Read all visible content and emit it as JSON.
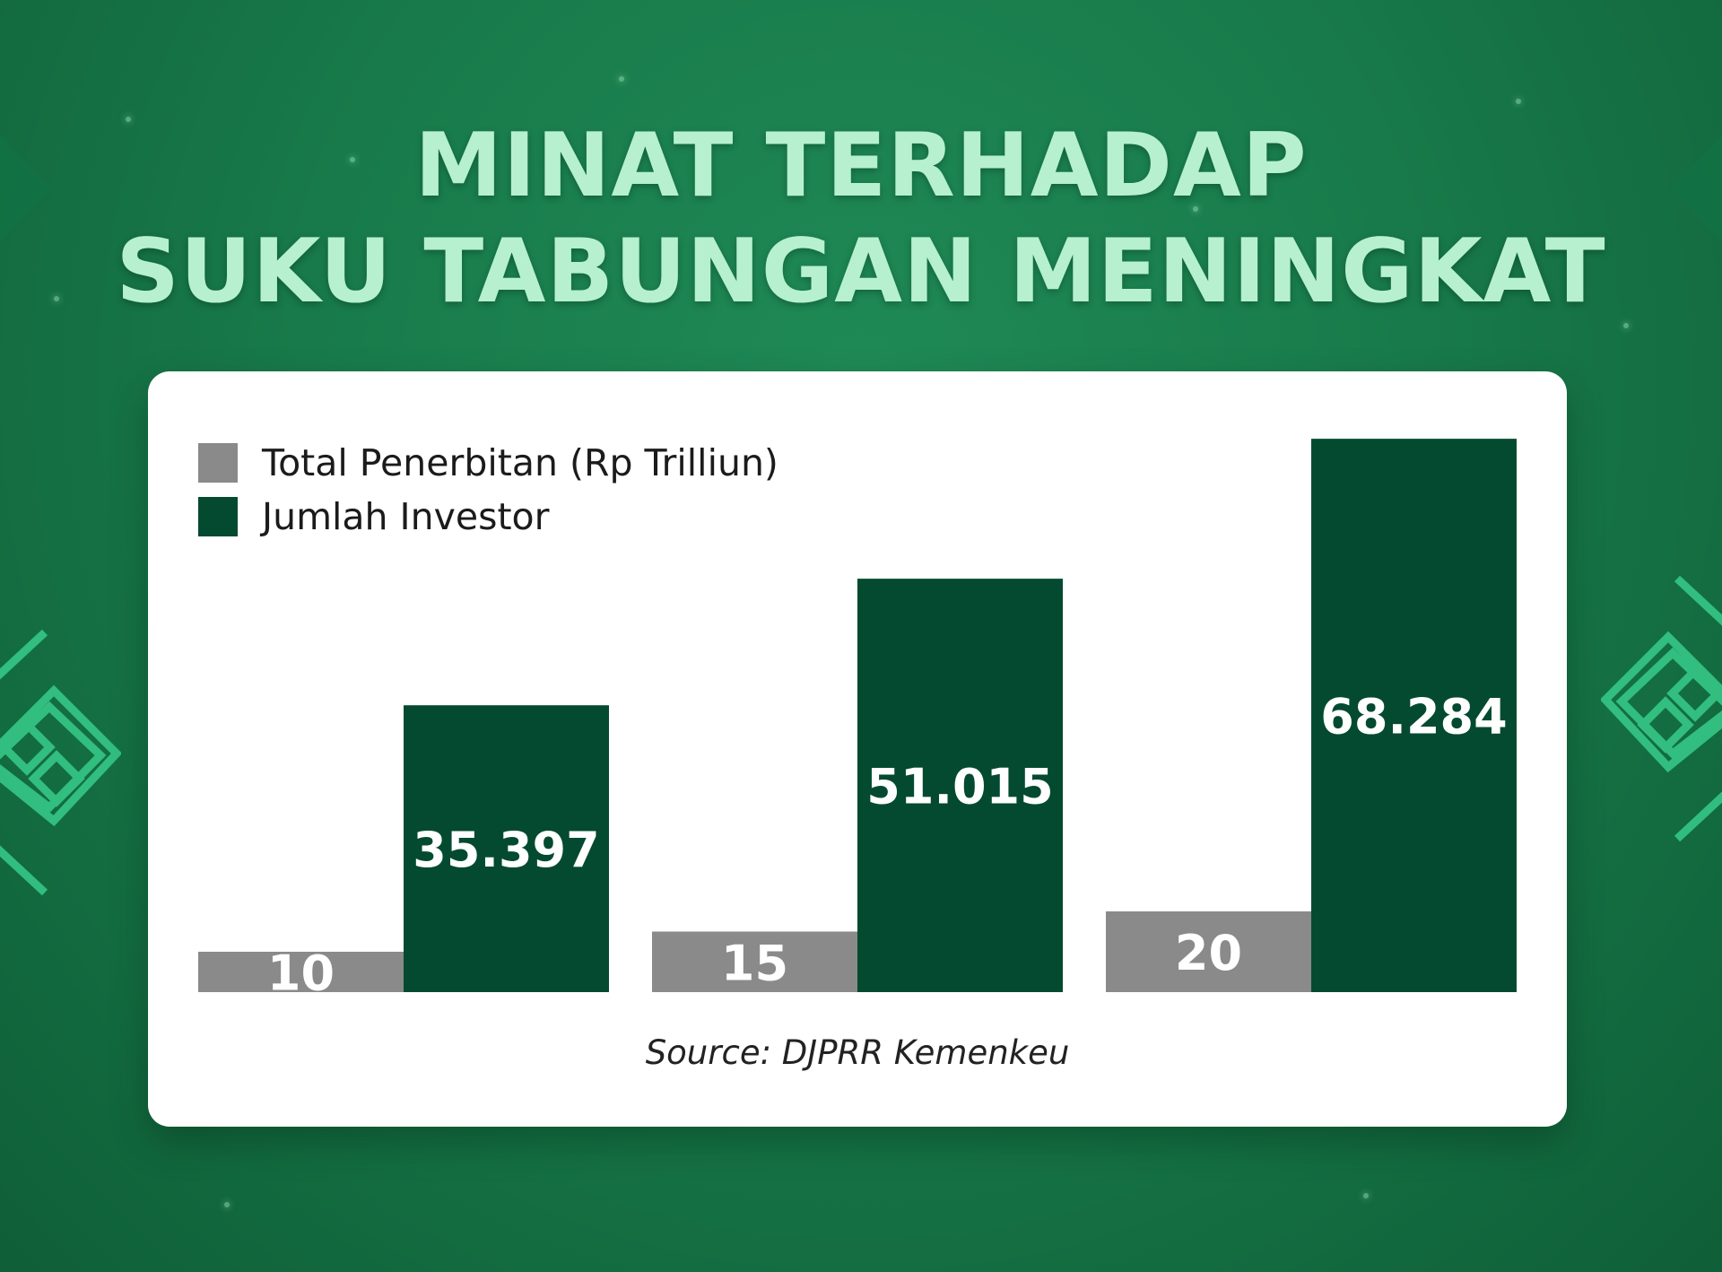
{
  "title": {
    "line1": "MINAT TERHADAP",
    "line2": "SUKU TABUNGAN MENINGKAT"
  },
  "colors": {
    "background": "#187a4a",
    "title": "#b6f0cf",
    "total_penerbitan": "#8a8a8a",
    "jumlah_investor": "#034a31",
    "card": "#ffffff"
  },
  "chart_data": {
    "type": "bar",
    "categories": [
      "",
      "",
      ""
    ],
    "series": [
      {
        "name": "Total Penerbitan (Rp Trilliun)",
        "values": [
          10,
          15,
          20
        ],
        "labels": [
          "10",
          "15",
          "20"
        ]
      },
      {
        "name": "Jumlah Investor",
        "values": [
          35397,
          51015,
          68284
        ],
        "labels": [
          "35.397",
          "51.015",
          "68.284"
        ]
      }
    ],
    "legend_position": "top-left",
    "grid": false,
    "axes_visible": false,
    "source": "Source: DJPRR Kemenkeu"
  }
}
